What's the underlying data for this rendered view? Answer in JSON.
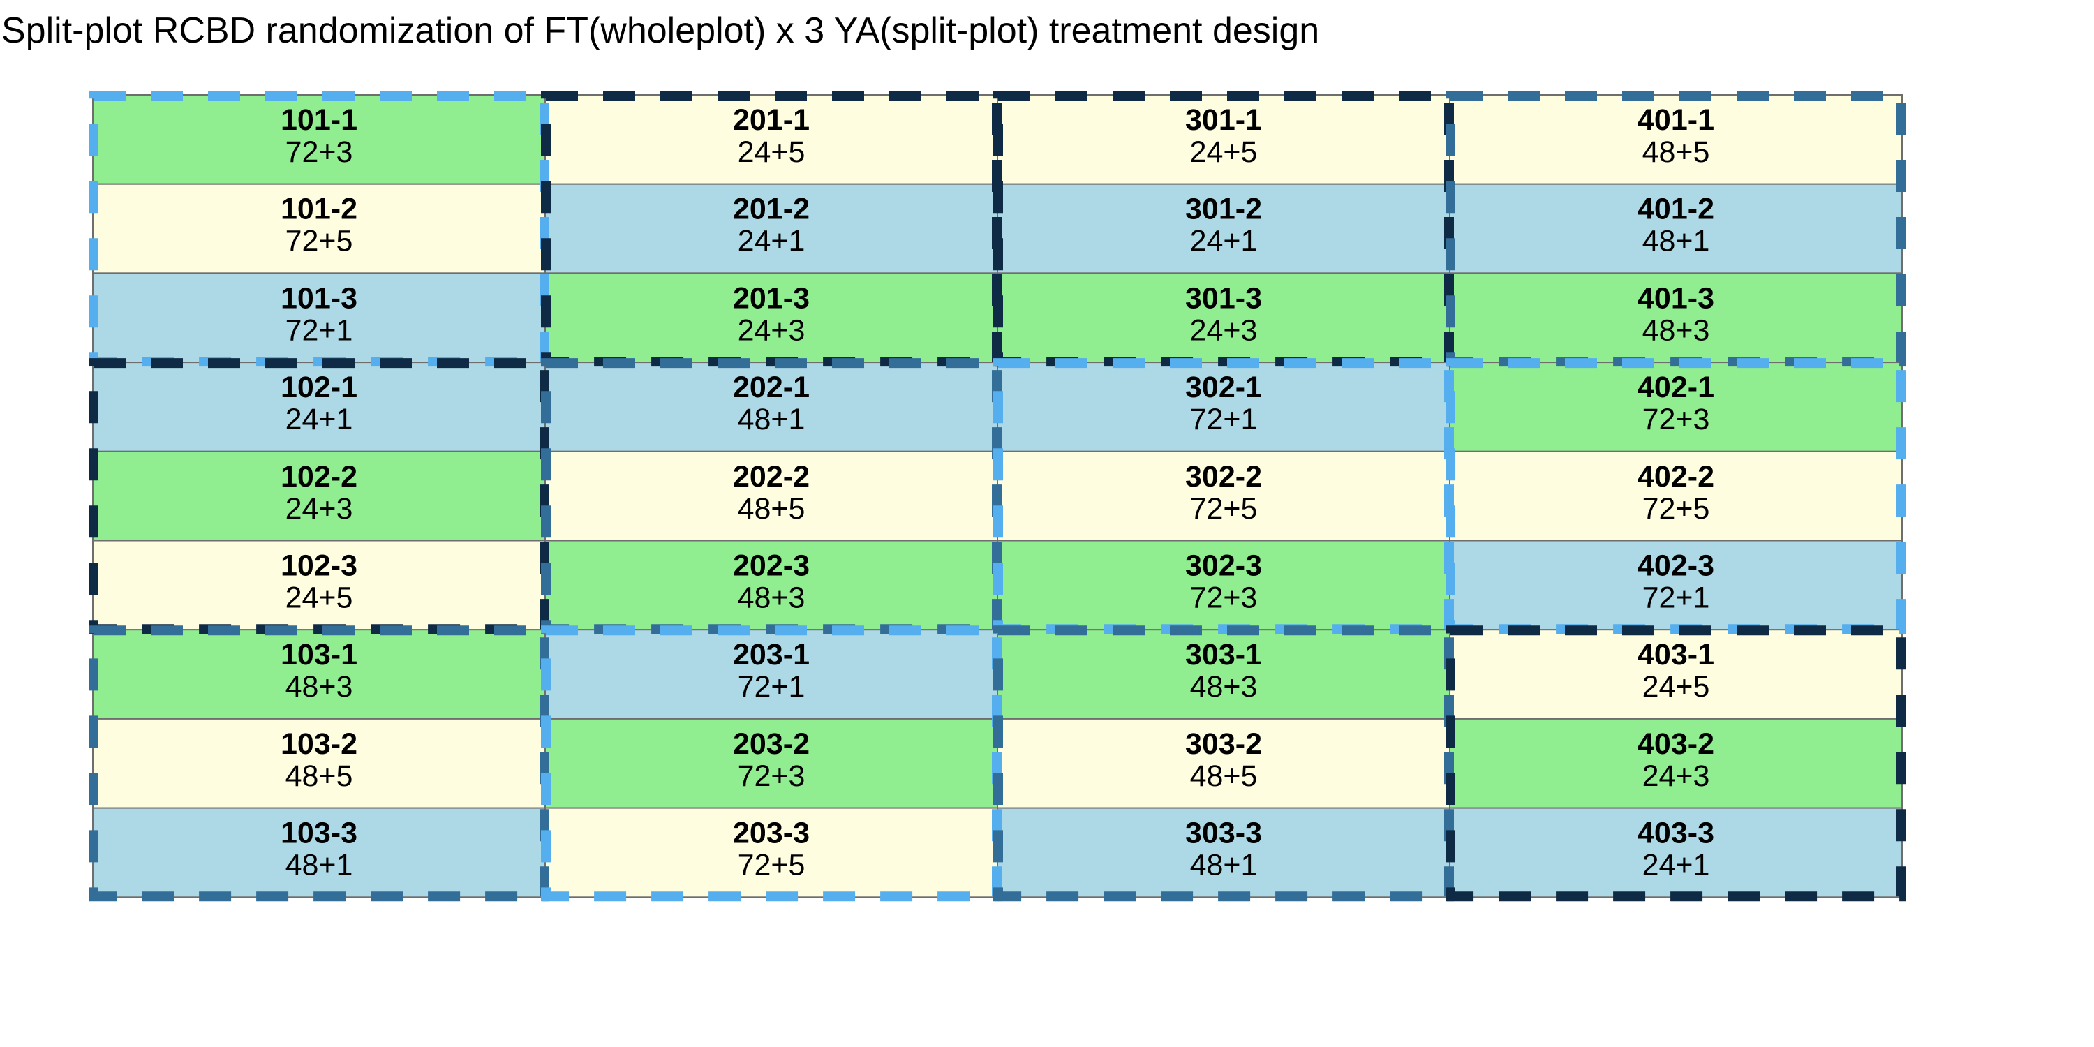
{
  "title": "Split-plot RCBD randomization of FT(wholeplot) x 3 YA(split-plot) treatment design",
  "colors": {
    "ya_1": "#add8e6",
    "ya_3": "#90ee90",
    "ya_5": "#fffde0",
    "ft_24": "#0f2a44",
    "ft_48": "#336e99",
    "ft_72": "#55aeed",
    "cell_border": "#6e6e6e"
  },
  "columns": [
    {
      "plots": [
        {
          "id": "101-1",
          "trt": "72+3"
        },
        {
          "id": "101-2",
          "trt": "72+5"
        },
        {
          "id": "101-3",
          "trt": "72+1"
        },
        {
          "id": "102-1",
          "trt": "24+1"
        },
        {
          "id": "102-2",
          "trt": "24+3"
        },
        {
          "id": "102-3",
          "trt": "24+5"
        },
        {
          "id": "103-1",
          "trt": "48+3"
        },
        {
          "id": "103-2",
          "trt": "48+5"
        },
        {
          "id": "103-3",
          "trt": "48+1"
        }
      ]
    },
    {
      "plots": [
        {
          "id": "201-1",
          "trt": "24+5"
        },
        {
          "id": "201-2",
          "trt": "24+1"
        },
        {
          "id": "201-3",
          "trt": "24+3"
        },
        {
          "id": "202-1",
          "trt": "48+1"
        },
        {
          "id": "202-2",
          "trt": "48+5"
        },
        {
          "id": "202-3",
          "trt": "48+3"
        },
        {
          "id": "203-1",
          "trt": "72+1"
        },
        {
          "id": "203-2",
          "trt": "72+3"
        },
        {
          "id": "203-3",
          "trt": "72+5"
        }
      ]
    },
    {
      "plots": [
        {
          "id": "301-1",
          "trt": "24+5"
        },
        {
          "id": "301-2",
          "trt": "24+1"
        },
        {
          "id": "301-3",
          "trt": "24+3"
        },
        {
          "id": "302-1",
          "trt": "72+1"
        },
        {
          "id": "302-2",
          "trt": "72+5"
        },
        {
          "id": "302-3",
          "trt": "72+3"
        },
        {
          "id": "303-1",
          "trt": "48+3"
        },
        {
          "id": "303-2",
          "trt": "48+5"
        },
        {
          "id": "303-3",
          "trt": "48+1"
        }
      ]
    },
    {
      "plots": [
        {
          "id": "401-1",
          "trt": "48+5"
        },
        {
          "id": "401-2",
          "trt": "48+1"
        },
        {
          "id": "401-3",
          "trt": "48+3"
        },
        {
          "id": "402-1",
          "trt": "72+3"
        },
        {
          "id": "402-2",
          "trt": "72+5"
        },
        {
          "id": "402-3",
          "trt": "72+1"
        },
        {
          "id": "403-1",
          "trt": "24+5"
        },
        {
          "id": "403-2",
          "trt": "24+3"
        },
        {
          "id": "403-3",
          "trt": "24+1"
        }
      ]
    }
  ]
}
